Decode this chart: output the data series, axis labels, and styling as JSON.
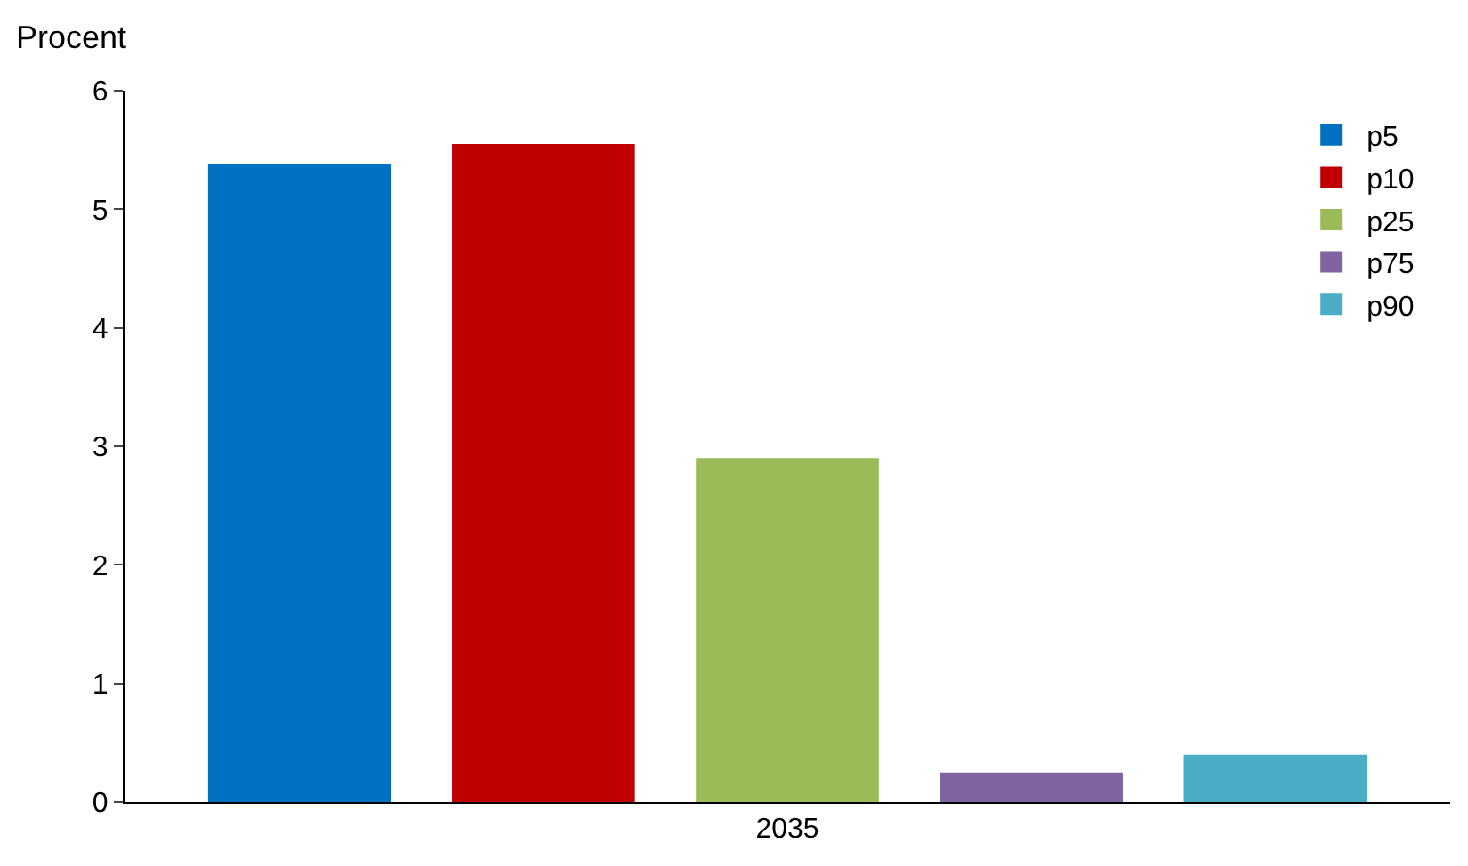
{
  "chart_data": {
    "type": "bar",
    "ylabel": "Procent",
    "categories": [
      "2035"
    ],
    "series": [
      {
        "name": "p5",
        "color": "#0070c0",
        "values": [
          5.38
        ]
      },
      {
        "name": "p10",
        "color": "#c00000",
        "values": [
          5.55
        ]
      },
      {
        "name": "p25",
        "color": "#9bbb59",
        "values": [
          2.9
        ]
      },
      {
        "name": "p75",
        "color": "#8064a2",
        "values": [
          0.25
        ]
      },
      {
        "name": "p90",
        "color": "#4bacc6",
        "values": [
          0.4
        ]
      }
    ],
    "ylim": [
      0,
      6
    ],
    "yticks": [
      0,
      1,
      2,
      3,
      4,
      5,
      6
    ],
    "legend": "top right"
  }
}
